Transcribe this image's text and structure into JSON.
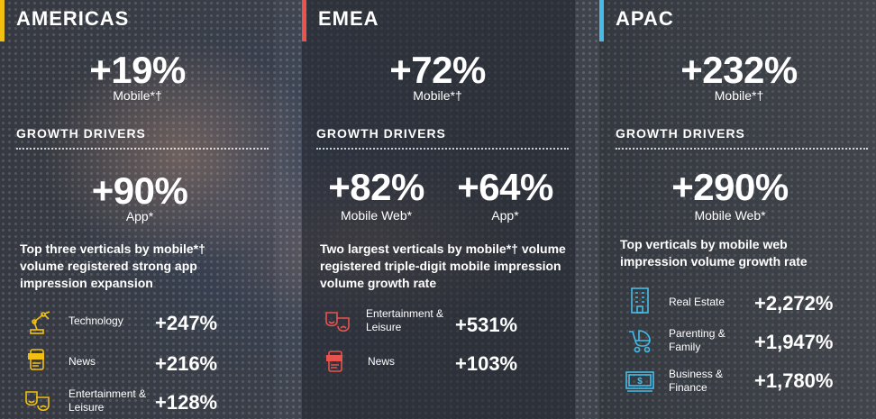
{
  "colors": {
    "americas_accent": "#f2c010",
    "emea_accent": "#e8534d",
    "apac_accent": "#46bde8",
    "icon_americas": "#f2c010",
    "icon_emea": "#e8534d",
    "icon_apac": "#46bde8"
  },
  "americas": {
    "region": "AMERICAS",
    "headline": {
      "value": "+19%",
      "label": "Mobile*†"
    },
    "growth_drivers_label": "GROWTH DRIVERS",
    "drivers": [
      {
        "value": "+90%",
        "label": "App*"
      }
    ],
    "description": "Top three verticals by mobile*† volume registered strong app impression expansion",
    "verticals": [
      {
        "icon": "robot-arm-icon",
        "label": "Technology",
        "value": "+247%"
      },
      {
        "icon": "news-phone-icon",
        "label": "News",
        "value": "+216%"
      },
      {
        "icon": "theater-masks-icon",
        "label": "Entertainment & Leisure",
        "value": "+128%"
      }
    ]
  },
  "emea": {
    "region": "EMEA",
    "headline": {
      "value": "+72%",
      "label": "Mobile*†"
    },
    "growth_drivers_label": "GROWTH DRIVERS",
    "drivers": [
      {
        "value": "+82%",
        "label": "Mobile Web*"
      },
      {
        "value": "+64%",
        "label": "App*"
      }
    ],
    "description": "Two largest verticals by mobile*† volume registered triple-digit mobile impression volume growth rate",
    "verticals": [
      {
        "icon": "theater-masks-icon",
        "label": "Entertainment & Leisure",
        "value": "+531%"
      },
      {
        "icon": "news-phone-icon",
        "label": "News",
        "value": "+103%"
      }
    ]
  },
  "apac": {
    "region": "APAC",
    "headline": {
      "value": "+232%",
      "label": "Mobile*†"
    },
    "growth_drivers_label": "GROWTH DRIVERS",
    "drivers": [
      {
        "value": "+290%",
        "label": "Mobile Web*"
      }
    ],
    "description": "Top verticals by mobile web impression volume growth rate",
    "verticals": [
      {
        "icon": "building-icon",
        "label": "Real Estate",
        "value": "+2,272%"
      },
      {
        "icon": "stroller-icon",
        "label": "Parenting & Family",
        "value": "+1,947%"
      },
      {
        "icon": "money-icon",
        "label": "Business & Finance",
        "value": "+1,780%"
      }
    ]
  }
}
